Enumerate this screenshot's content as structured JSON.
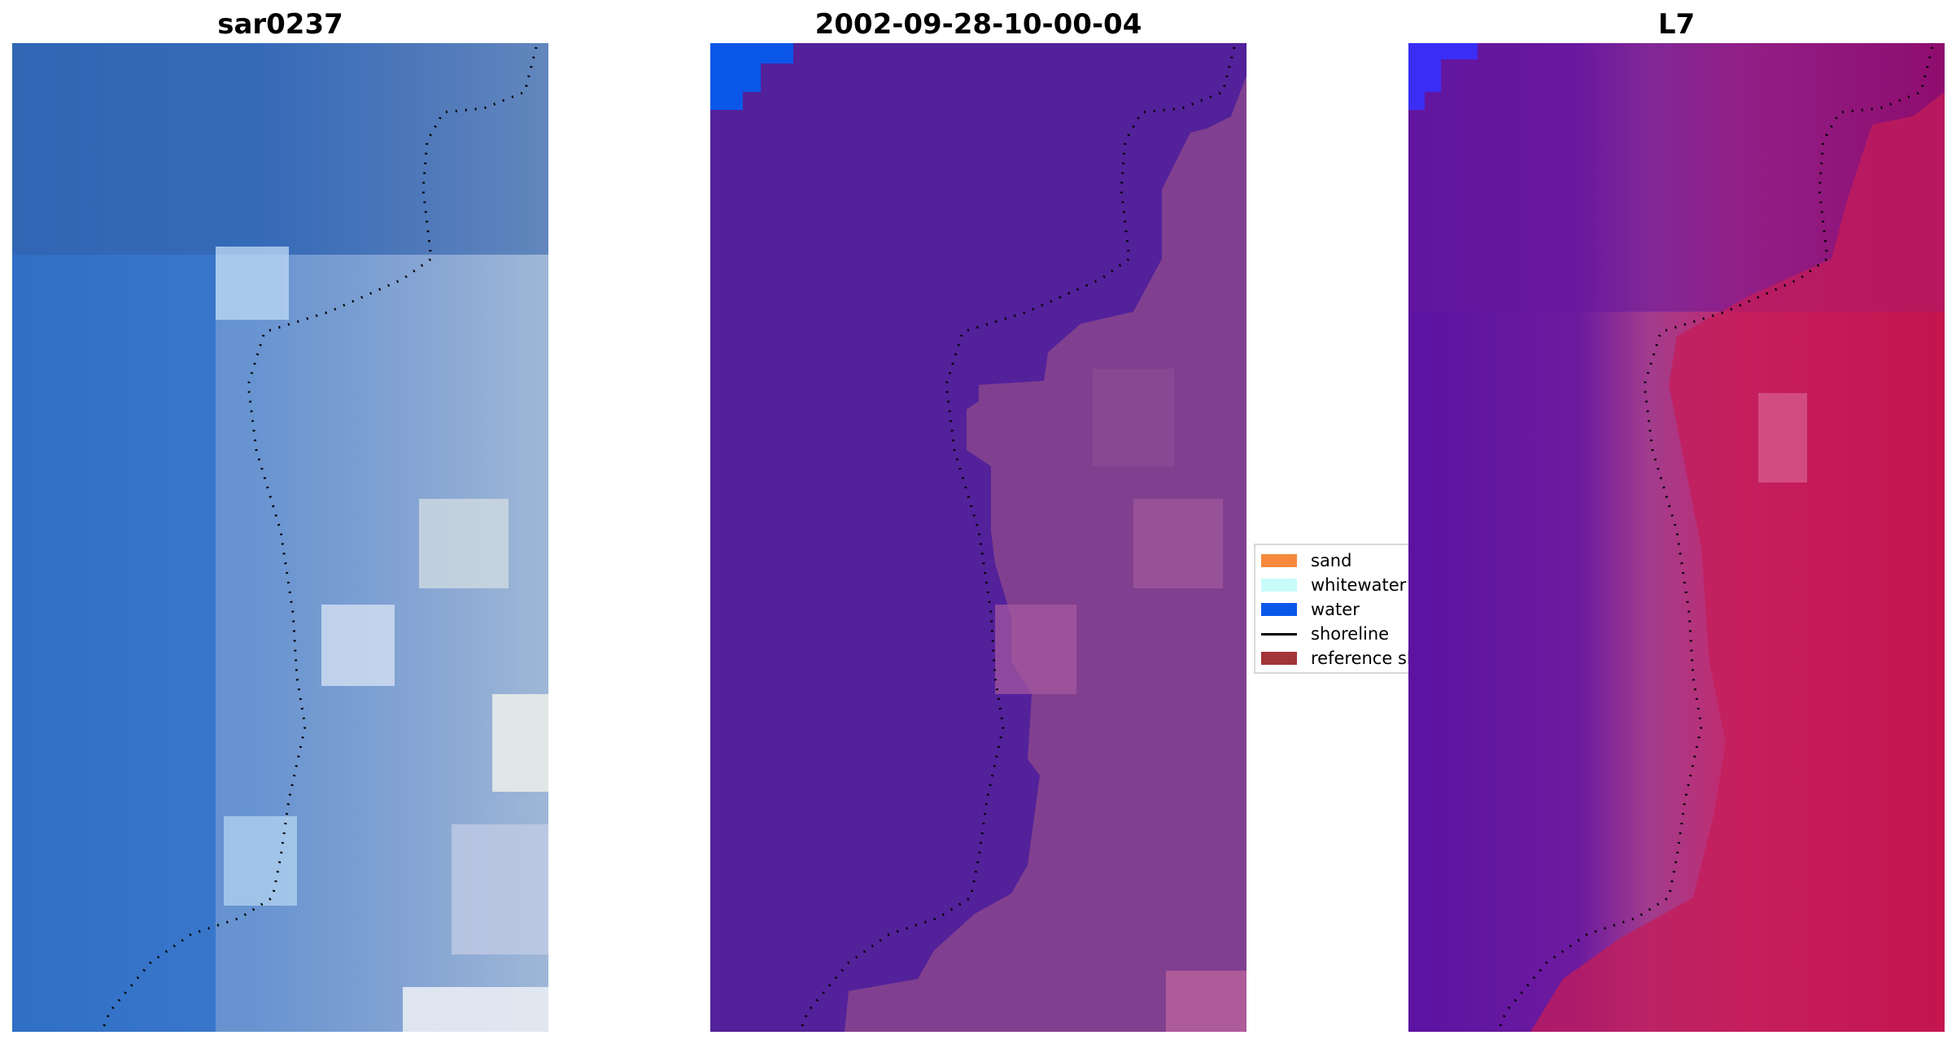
{
  "panels": [
    {
      "title": "sar0237",
      "style": "rgb"
    },
    {
      "title": "2002-09-28-10-00-04",
      "style": "classified"
    },
    {
      "title": "L7",
      "style": "index"
    }
  ],
  "legend": {
    "items": [
      {
        "label": "sand",
        "color": "#f58a3c",
        "kind": "swatch"
      },
      {
        "label": "whitewater",
        "color": "#c9fbfb",
        "kind": "swatch"
      },
      {
        "label": "water",
        "color": "#0b57ea",
        "kind": "swatch"
      },
      {
        "label": "shoreline",
        "color": "#000000",
        "kind": "line"
      },
      {
        "label": "reference shoreline",
        "color": "#a23538",
        "kind": "swatch"
      }
    ]
  },
  "colors": {
    "class_background": "#53219a",
    "water_patch": "#0b57ea",
    "index_patch": "#3a2ef5"
  }
}
